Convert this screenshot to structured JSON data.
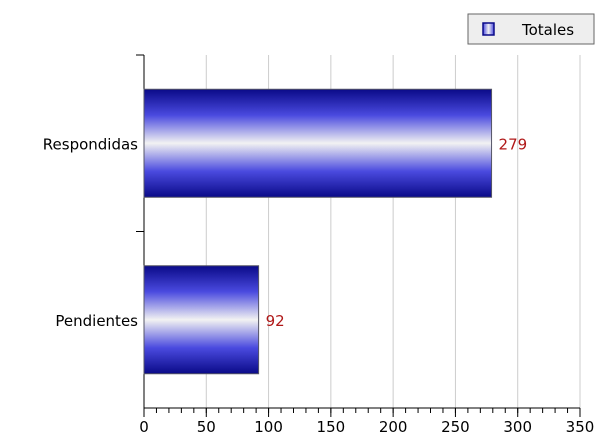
{
  "chart_data": {
    "type": "bar",
    "orientation": "horizontal",
    "categories": [
      "Respondidas",
      "Pendientes"
    ],
    "series": [
      {
        "name": "Totales",
        "values": [
          279,
          92
        ]
      }
    ],
    "xlim": [
      0,
      350
    ],
    "x_ticks": [
      0,
      50,
      100,
      150,
      200,
      250,
      300,
      350
    ],
    "grid": true,
    "legend": {
      "position": "top-right",
      "label": "Totales"
    },
    "colors": {
      "bar_dark": "#0a0a88",
      "bar_light": "#f2f2f2",
      "bar_mid": "#4a4adf",
      "bar_border": "#555566",
      "value_label": "#b01818",
      "grid": "#cccccc",
      "axis": "#000000"
    }
  }
}
